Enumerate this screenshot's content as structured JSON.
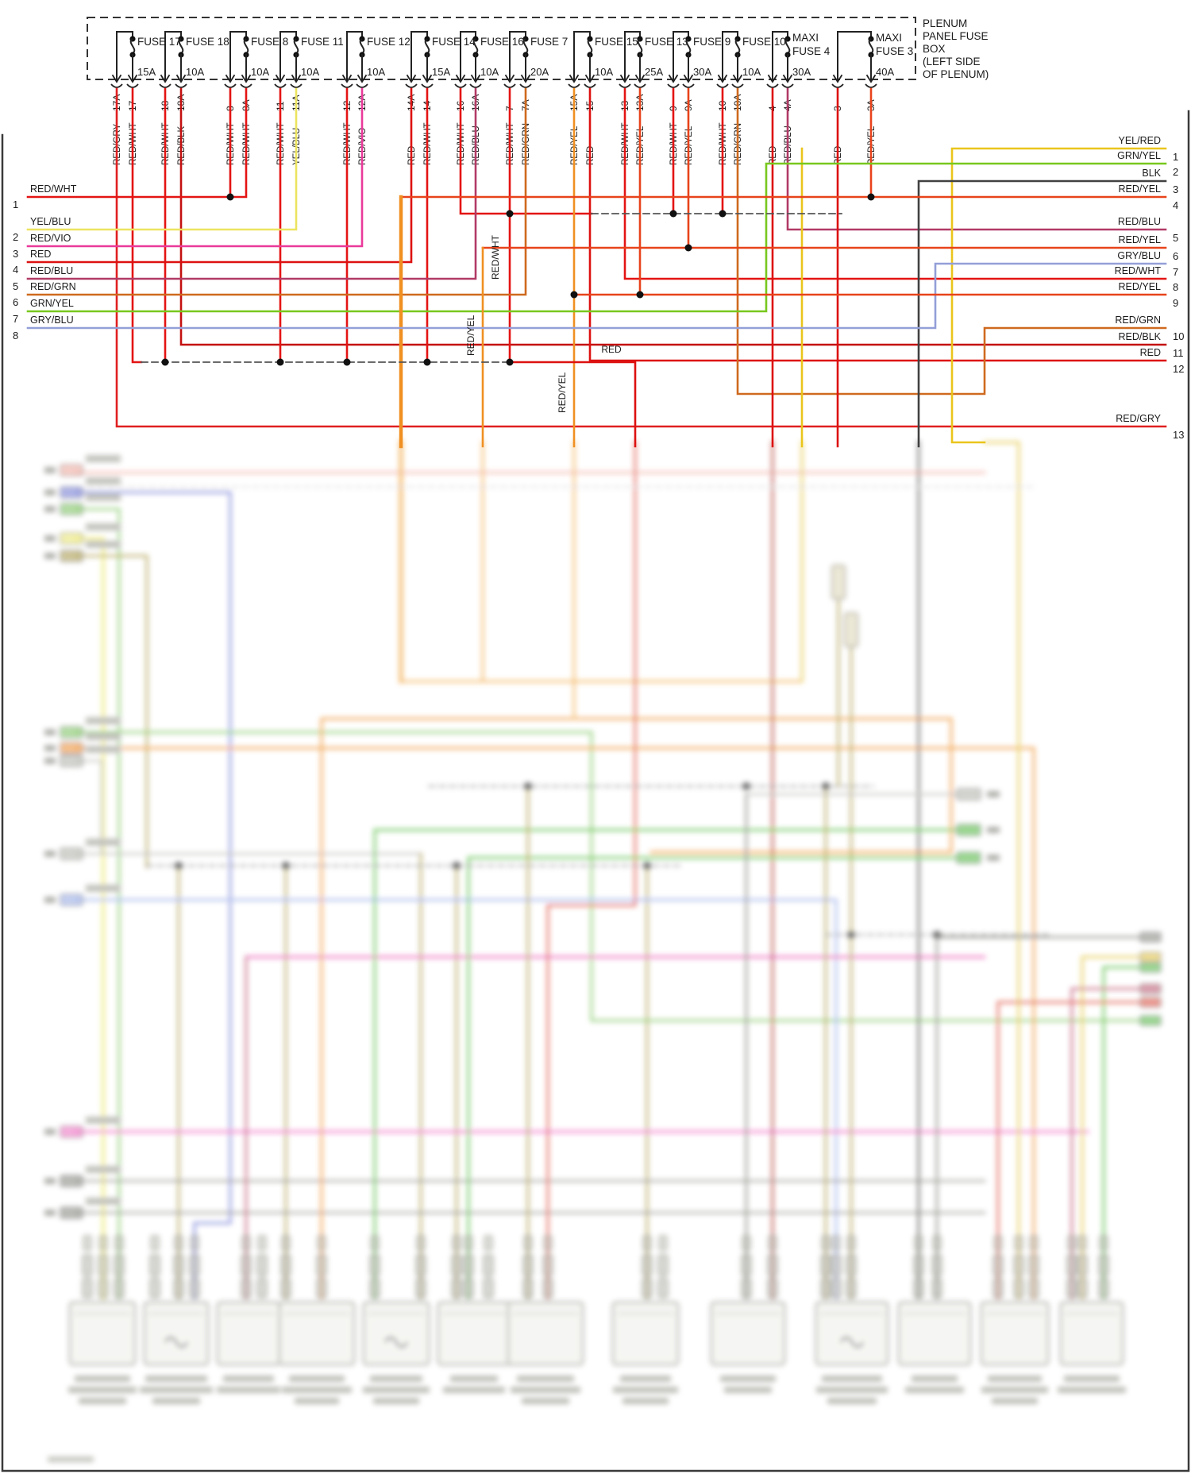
{
  "fuse_box": {
    "title_lines": [
      "PLENUM",
      "PANEL FUSE",
      "BOX",
      "(LEFT SIDE",
      "OF PLENUM)"
    ]
  },
  "fuses": [
    {
      "line1": "FUSE 17",
      "line2": "",
      "amp": "15A"
    },
    {
      "line1": "FUSE 18",
      "line2": "",
      "amp": "10A"
    },
    {
      "line1": "FUSE 8",
      "line2": "",
      "amp": "10A"
    },
    {
      "line1": "FUSE 11",
      "line2": "",
      "amp": "10A"
    },
    {
      "line1": "FUSE 12",
      "line2": "",
      "amp": "10A"
    },
    {
      "line1": "FUSE 14",
      "line2": "",
      "amp": "15A"
    },
    {
      "line1": "FUSE 16",
      "line2": "",
      "amp": "10A"
    },
    {
      "line1": "FUSE 7",
      "line2": "",
      "amp": "20A"
    },
    {
      "line1": "FUSE 15",
      "line2": "",
      "amp": "10A"
    },
    {
      "line1": "FUSE 13",
      "line2": "",
      "amp": "25A"
    },
    {
      "line1": "FUSE 9",
      "line2": "",
      "amp": "30A"
    },
    {
      "line1": "FUSE 10",
      "line2": "",
      "amp": "10A"
    },
    {
      "line1": "MAXI",
      "line2": "FUSE 4",
      "amp": "30A"
    },
    {
      "line1": "MAXI",
      "line2": "FUSE 3",
      "amp": "40A"
    }
  ],
  "pins": [
    {
      "id": "17A",
      "color": "RED/GRY"
    },
    {
      "id": "17",
      "color": "RED/WHT"
    },
    {
      "id": "18",
      "color": "RED/WHT"
    },
    {
      "id": "18A",
      "color": "RED/BLK"
    },
    {
      "id": "8",
      "color": "RED/WHT"
    },
    {
      "id": "8A",
      "color": "RED/WHT"
    },
    {
      "id": "11",
      "color": "RED/WHT"
    },
    {
      "id": "11A",
      "color": "YEL/BLU"
    },
    {
      "id": "12",
      "color": "RED/WHT"
    },
    {
      "id": "12A",
      "color": "RED/VIO"
    },
    {
      "id": "14A",
      "color": "RED"
    },
    {
      "id": "14",
      "color": "RED/WHT"
    },
    {
      "id": "16",
      "color": "RED/WHT"
    },
    {
      "id": "16A",
      "color": "RED/BLU"
    },
    {
      "id": "7",
      "color": "RED/WHT"
    },
    {
      "id": "7A",
      "color": "RED/GRN"
    },
    {
      "id": "15A",
      "color": "RED/YEL"
    },
    {
      "id": "15",
      "color": "RED"
    },
    {
      "id": "13",
      "color": "RED/WHT"
    },
    {
      "id": "13A",
      "color": "RED/YEL"
    },
    {
      "id": "9",
      "color": "RED/WHT"
    },
    {
      "id": "9A",
      "color": "RED/YEL"
    },
    {
      "id": "10",
      "color": "RED/WHT"
    },
    {
      "id": "10A",
      "color": "RED/GRN"
    },
    {
      "id": "4",
      "color": "RED"
    },
    {
      "id": "4A",
      "color": "RED/BLU"
    },
    {
      "id": "3",
      "color": "RED"
    },
    {
      "id": "3A",
      "color": "RED/YEL"
    }
  ],
  "left_bus": [
    {
      "n": "1",
      "label": "RED/WHT"
    },
    {
      "n": "2",
      "label": "YEL/BLU"
    },
    {
      "n": "3",
      "label": "RED/VIO"
    },
    {
      "n": "4",
      "label": "RED"
    },
    {
      "n": "5",
      "label": "RED/BLU"
    },
    {
      "n": "6",
      "label": "RED/GRN"
    },
    {
      "n": "7",
      "label": "GRN/YEL"
    },
    {
      "n": "8",
      "label": "GRY/BLU"
    }
  ],
  "right_bus": [
    {
      "n": "1",
      "label": "YEL/RED"
    },
    {
      "n": "2",
      "label": "GRN/YEL"
    },
    {
      "n": "3",
      "label": "BLK"
    },
    {
      "n": "4",
      "label": "RED/YEL"
    },
    {
      "n": "5",
      "label": "RED/BLU"
    },
    {
      "n": "6",
      "label": "RED/YEL"
    },
    {
      "n": "7",
      "label": "GRY/BLU"
    },
    {
      "n": "8",
      "label": "RED/WHT"
    },
    {
      "n": "9",
      "label": "RED/YEL"
    },
    {
      "n": "10",
      "label": "RED/GRN"
    },
    {
      "n": "11",
      "label": "RED/BLK"
    },
    {
      "n": "12",
      "label": "RED"
    },
    {
      "n": "13",
      "label": "RED/GRY"
    }
  ],
  "inline_labels": {
    "red_wht": "RED/WHT",
    "red_yel_a": "RED/YEL",
    "red_yel_b": "RED/YEL",
    "red": "RED"
  },
  "palette": {
    "RED": "#dd1111",
    "RED_WHT": "#e41414",
    "RED_GRY": "#e02020",
    "RED_BLK": "#c41010",
    "RED_VIO": "#ea3a9a",
    "YEL_BLU": "#ece460",
    "RED_BLU": "#b13a66",
    "RED_GRN": "#cf6a1f",
    "RED_YEL": "#e8431b",
    "RED_YEL_V": "#f09022",
    "GRY_BLU": "#939fd8",
    "GRN_YEL": "#78c81e",
    "YEL_RED": "#eac51c",
    "BLK": "#414141"
  }
}
